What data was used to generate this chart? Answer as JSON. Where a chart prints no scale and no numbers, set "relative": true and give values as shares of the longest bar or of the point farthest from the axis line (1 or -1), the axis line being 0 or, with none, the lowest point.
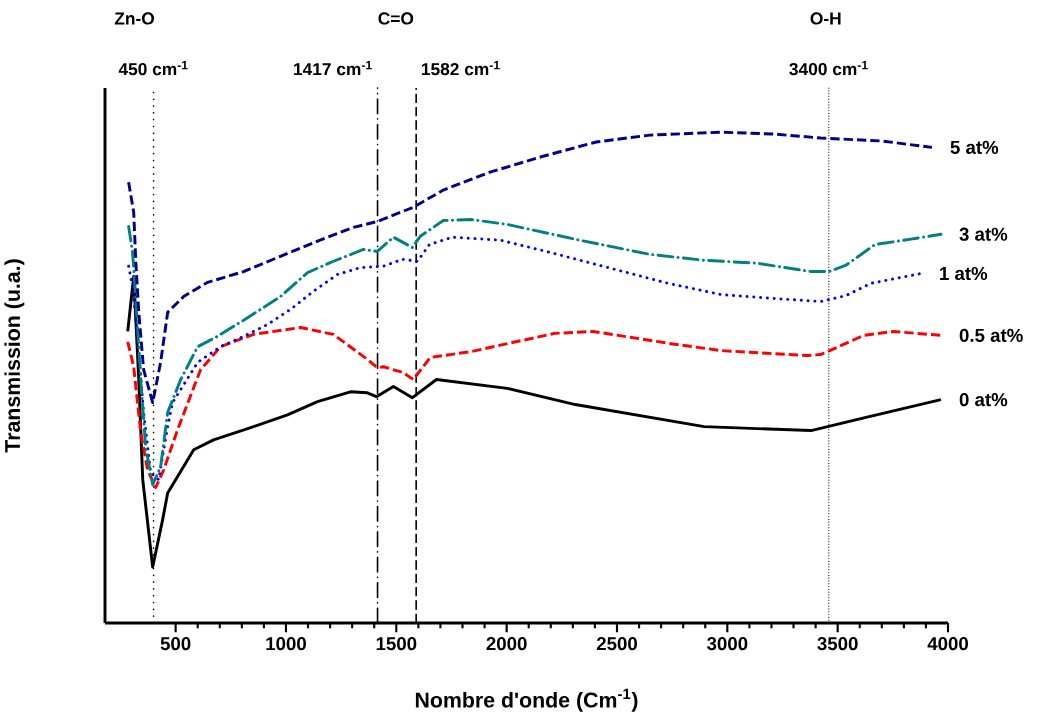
{
  "chart_data": {
    "type": "line",
    "relative": true,
    "xlabel": "Nombre d'onde (Cm$^{-1}$)",
    "ylabel": "Transmission (u.a.)",
    "xlim": [
      180,
      4000
    ],
    "xticks": [
      500,
      1000,
      1500,
      2000,
      2500,
      3000,
      3500,
      4000
    ],
    "series": [
      {
        "name": "0 at%",
        "color": "#000000",
        "line_style": "solid",
        "x": [
          283,
          310,
          333,
          351,
          396,
          441,
          464,
          582,
          672,
          840,
          1007,
          1143,
          1292,
          1369,
          1410,
          1487,
          1573,
          1682,
          2003,
          2311,
          2895,
          3379,
          3619,
          3968
        ],
        "values": [
          0.594,
          0.706,
          0.496,
          0.292,
          0.114,
          0.21,
          0.265,
          0.353,
          0.373,
          0.398,
          0.424,
          0.451,
          0.471,
          0.469,
          0.461,
          0.482,
          0.459,
          0.496,
          0.478,
          0.445,
          0.4,
          0.392,
          0.418,
          0.455
        ]
      },
      {
        "name": "0.5 at%",
        "color": "#ff0000",
        "line_style": "dashed",
        "x": [
          283,
          310,
          342,
          373,
          410,
          446,
          509,
          613,
          704,
          853,
          1066,
          1215,
          1369,
          1414,
          1442,
          1532,
          1577,
          1654,
          1840,
          2216,
          2392,
          2745,
          2972,
          3361,
          3424,
          3619,
          3750,
          3968
        ],
        "values": [
          0.573,
          0.522,
          0.388,
          0.312,
          0.276,
          0.312,
          0.394,
          0.516,
          0.563,
          0.588,
          0.602,
          0.588,
          0.537,
          0.52,
          0.522,
          0.51,
          0.496,
          0.541,
          0.553,
          0.59,
          0.594,
          0.569,
          0.555,
          0.545,
          0.547,
          0.586,
          0.594,
          0.586
        ]
      },
      {
        "name": "1 at%",
        "color": "#0000ff",
        "line_style": "dotted",
        "x": [
          287,
          305,
          328,
          355,
          387,
          423,
          464,
          486,
          600,
          704,
          808,
          916,
          1021,
          1125,
          1233,
          1337,
          1442,
          1528,
          1596,
          1650,
          1754,
          1971,
          2179,
          2401,
          2732,
          2972,
          3216,
          3424,
          3538,
          3651,
          3877
        ],
        "values": [
          0.727,
          0.686,
          0.578,
          0.429,
          0.306,
          0.292,
          0.4,
          0.449,
          0.531,
          0.563,
          0.584,
          0.608,
          0.639,
          0.676,
          0.71,
          0.724,
          0.727,
          0.741,
          0.737,
          0.771,
          0.786,
          0.78,
          0.757,
          0.731,
          0.692,
          0.669,
          0.661,
          0.655,
          0.667,
          0.692,
          0.712
        ]
      },
      {
        "name": "3 at%",
        "color": "#008080",
        "line_style": "dashdot",
        "x": [
          287,
          305,
          319,
          342,
          364,
          396,
          432,
          464,
          523,
          600,
          690,
          826,
          975,
          1098,
          1215,
          1351,
          1414,
          1487,
          1573,
          1609,
          1713,
          1840,
          2003,
          2329,
          2650,
          2895,
          3135,
          3379,
          3461,
          3538,
          3669,
          3832,
          3968
        ],
        "values": [
          0.808,
          0.755,
          0.665,
          0.496,
          0.359,
          0.282,
          0.318,
          0.429,
          0.496,
          0.563,
          0.584,
          0.622,
          0.665,
          0.714,
          0.737,
          0.761,
          0.757,
          0.786,
          0.765,
          0.788,
          0.82,
          0.822,
          0.812,
          0.78,
          0.751,
          0.739,
          0.733,
          0.716,
          0.716,
          0.729,
          0.771,
          0.782,
          0.792
        ]
      },
      {
        "name": "5 at%",
        "color": "#00008b",
        "line_style": "dashed",
        "x": [
          287,
          310,
          319,
          333,
          355,
          396,
          432,
          464,
          536,
          645,
          808,
          975,
          1143,
          1306,
          1414,
          1577,
          1713,
          1921,
          2166,
          2406,
          2650,
          2972,
          3216,
          3424,
          3700,
          3927
        ],
        "values": [
          0.898,
          0.837,
          0.741,
          0.633,
          0.516,
          0.449,
          0.531,
          0.633,
          0.665,
          0.694,
          0.716,
          0.747,
          0.778,
          0.806,
          0.818,
          0.847,
          0.882,
          0.918,
          0.951,
          0.98,
          0.994,
          1.0,
          0.996,
          0.988,
          0.982,
          0.969
        ]
      }
    ],
    "ref_lines": [
      {
        "axis": "x",
        "value": 400,
        "label": "450 cm$^{-1}$",
        "color": "#000000",
        "line_style": "dotted"
      },
      {
        "axis": "x",
        "value": 1415,
        "label": "1417 cm$^{-1}$",
        "color": "#000000",
        "line_style": "dashdot"
      },
      {
        "axis": "x",
        "value": 1590,
        "label": "1582 cm$^{-1}$",
        "color": "#000000",
        "line_style": "dashed"
      },
      {
        "axis": "x",
        "value": 3460,
        "label": "3400 cm$^{-1}$",
        "color": "#000000",
        "line_style": "dotted"
      }
    ],
    "annotations": [
      "Zn-O",
      "C=O",
      "O-H"
    ]
  }
}
